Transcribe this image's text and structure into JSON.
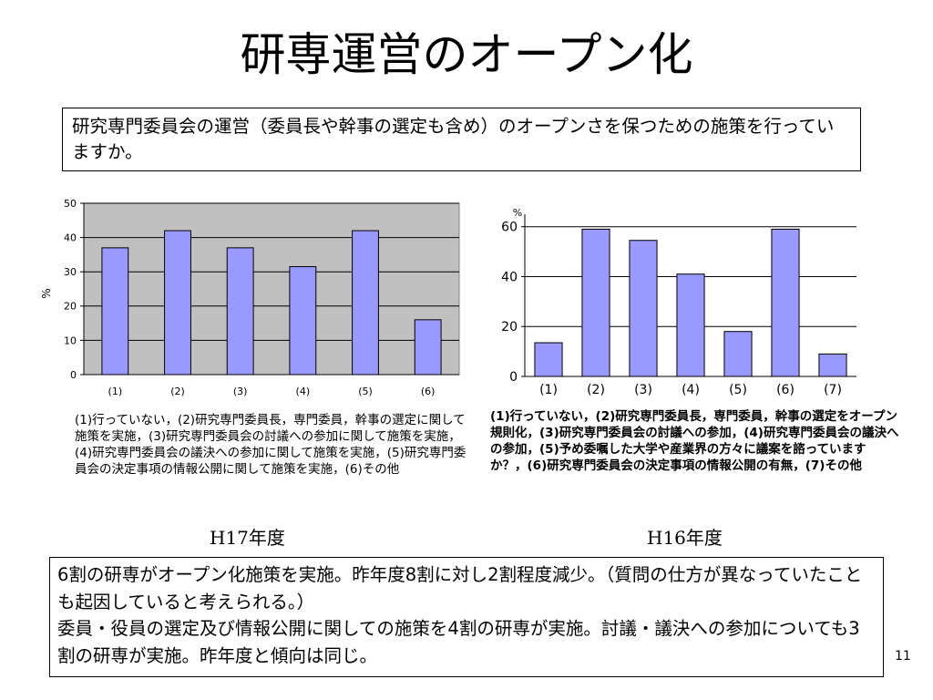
{
  "slide": {
    "title": "研専運営のオープン化",
    "question": "研究専門委員会の運営（委員長や幹事の選定も含め）のオープンさを保つための施策を行っていますか。",
    "summary_lines": [
      "6割の研専がオープン化施策を実施。昨年度8割に対し2割程度減少。（質問の仕方が異なっていたことも起因していると考えられる。）",
      "委員・役員の選定及び情報公開に関しての施策を4割の研専が実施。討議・議決への参加についても3割の研専が実施。昨年度と傾向は同じ。"
    ],
    "page_number": "11"
  },
  "chart_data": [
    {
      "type": "bar",
      "caption": "H17年度",
      "categories": [
        "(1)",
        "(2)",
        "(3)",
        "(4)",
        "(5)",
        "(6)"
      ],
      "values": [
        37,
        42,
        37,
        31.5,
        42,
        16
      ],
      "ylabel": "%",
      "ylim": [
        0,
        50
      ],
      "yticks": [
        0,
        10,
        20,
        30,
        40,
        50
      ],
      "grid": true,
      "colors": {
        "bar": "#9999ff",
        "plot_bg": "#c0c0c0",
        "border": "#000000"
      },
      "legend_text": "(1)行っていない，(2)研究専門委員長，専門委員，幹事の選定に関して施策を実施，(3)研究専門委員会の討議への参加に関して施策を実施，(4)研究専門委員会の議決への参加に関して施策を実施，(5)研究専門委員会の決定事項の情報公開に関して施策を実施，(6)その他"
    },
    {
      "type": "bar",
      "caption": "H16年度",
      "categories": [
        "(1)",
        "(2)",
        "(3)",
        "(4)",
        "(5)",
        "(6)",
        "(7)"
      ],
      "values": [
        13.5,
        59,
        54.5,
        41,
        18,
        59,
        9
      ],
      "ylabel": "%",
      "ylim": [
        0,
        65
      ],
      "yticks": [
        0,
        20,
        40,
        60
      ],
      "grid": true,
      "colors": {
        "bar": "#9999ff",
        "plot_bg": "#ffffff",
        "border": "#000000"
      },
      "legend_text": "(1)行っていない，(2)研究専門委員長，専門委員，幹事の選定をオープン規則化，(3)研究専門委員会の討議への参加，(4)研究専門委員会の議決への参加，(5)予め委嘱した大学や産業界の方々に議案を諮っていますか？，(6)研究専門委員会の決定事項の情報公開の有無，(7)その他"
    }
  ]
}
